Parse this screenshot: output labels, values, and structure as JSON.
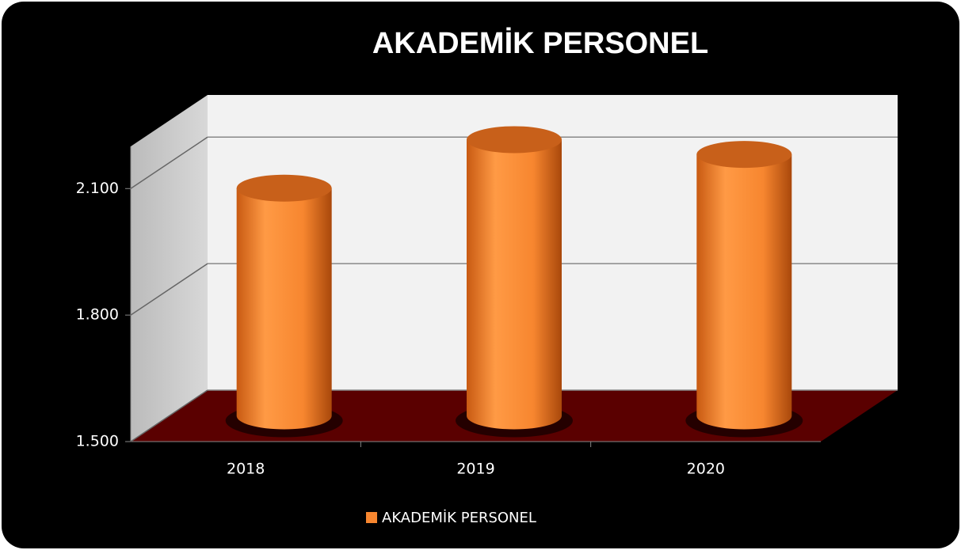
{
  "chart_data": {
    "type": "bar",
    "title": "AKADEMİK PERSONEL",
    "categories": [
      "2018",
      "2019",
      "2020"
    ],
    "series": [
      {
        "name": "AKADEMİK PERSONEL",
        "color": "#f7862f",
        "values": [
          2040,
          2155,
          2120
        ]
      }
    ],
    "ylim": [
      1500,
      2200
    ],
    "yticks": [
      {
        "value": 1500,
        "label": "1.500"
      },
      {
        "value": 1800,
        "label": "1.800"
      },
      {
        "value": 2100,
        "label": "2.100"
      }
    ],
    "grid": true,
    "legend": "bottom"
  }
}
